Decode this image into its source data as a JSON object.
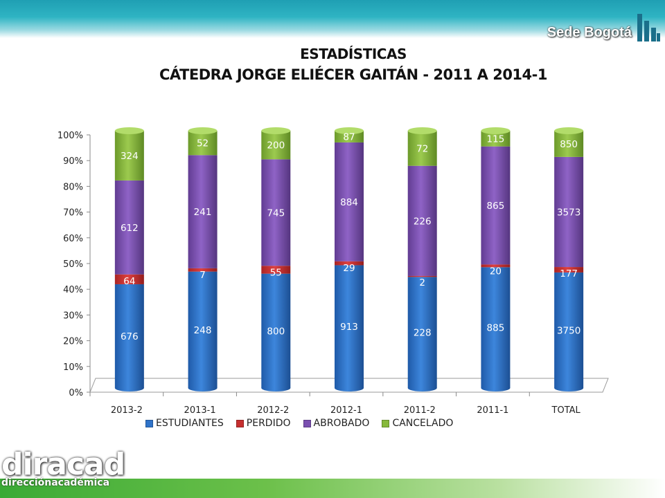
{
  "brand": {
    "text": "Sede Bogotá"
  },
  "title": {
    "line1": "ESTADÍSTICAS",
    "line2": "CÁTEDRA JORGE ELIÉCER GAITÁN - 2011 A 2014-1"
  },
  "logo": {
    "main": "diracad",
    "sub": "direcciónacadémica"
  },
  "colors": {
    "ESTUDIANTES": "#2f73c9",
    "PERDIDO": "#c62f2f",
    "ABROBADO": "#7a4fb0",
    "CANCELADO": "#86b93a"
  },
  "chart_data": {
    "type": "bar",
    "stacked": "percent",
    "categories": [
      "2013-2",
      "2013-1",
      "2012-2",
      "2012-1",
      "2011-2",
      "2011-1",
      "TOTAL"
    ],
    "series": [
      {
        "name": "ESTUDIANTES",
        "values": [
          676,
          248,
          800,
          913,
          228,
          885,
          3750
        ]
      },
      {
        "name": "PERDIDO",
        "values": [
          64,
          7,
          55,
          29,
          2,
          20,
          177
        ]
      },
      {
        "name": "ABROBADO",
        "values": [
          612,
          241,
          745,
          884,
          226,
          865,
          3573
        ]
      },
      {
        "name": "CANCELADO",
        "values": [
          324,
          52,
          200,
          87,
          72,
          115,
          850
        ]
      }
    ],
    "yticks": [
      "0%",
      "10%",
      "20%",
      "30%",
      "40%",
      "50%",
      "60%",
      "70%",
      "80%",
      "90%",
      "100%"
    ],
    "ylim": [
      0,
      100
    ],
    "legend": "bottom",
    "grid": false
  }
}
